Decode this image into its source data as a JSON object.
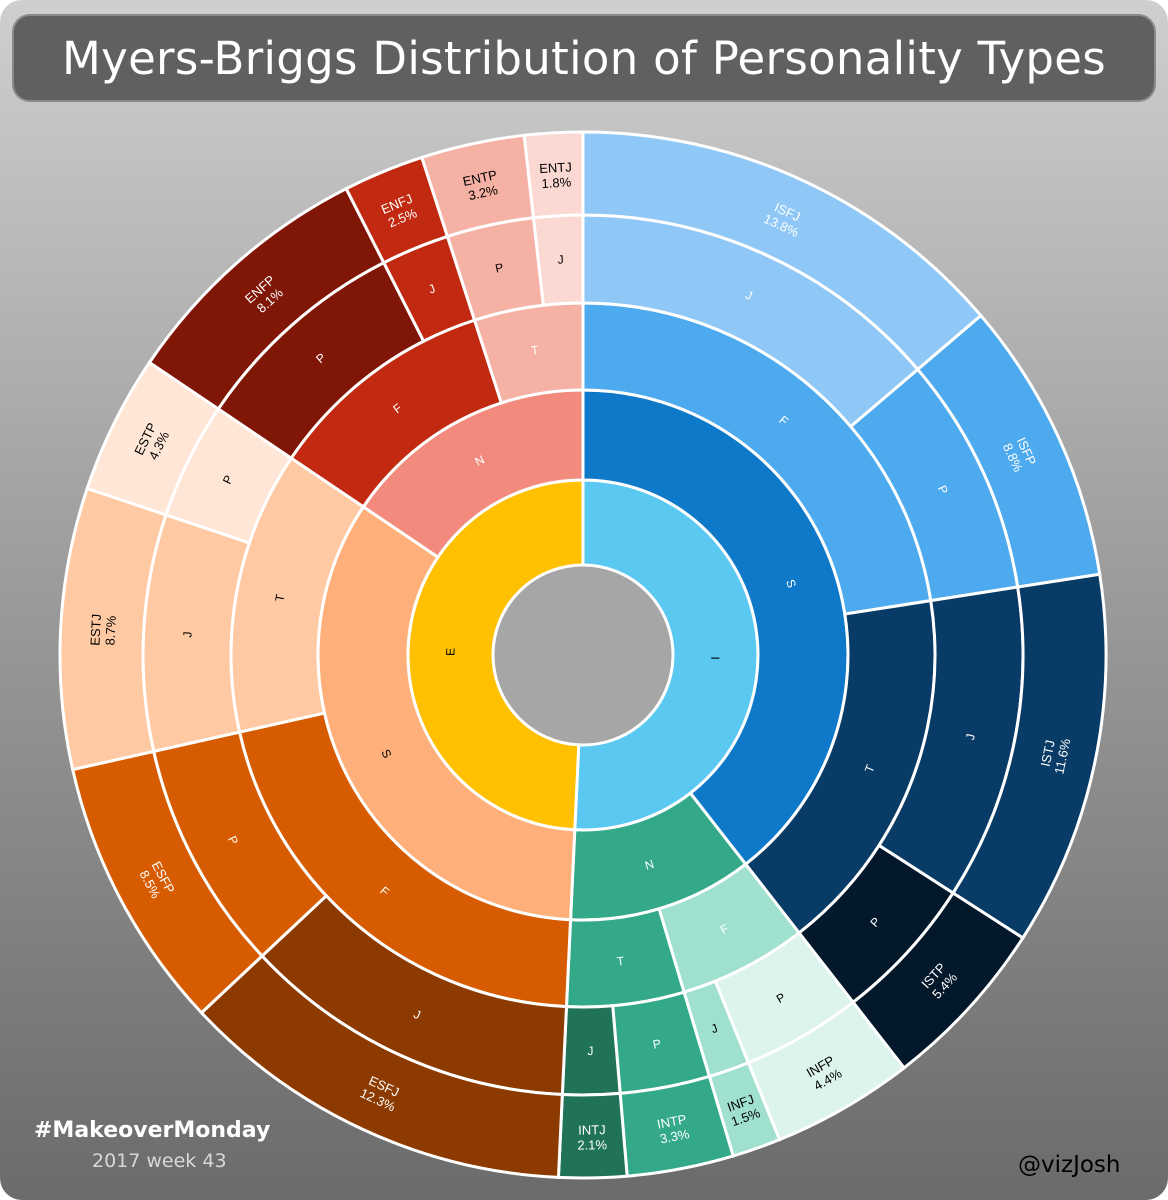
{
  "title": "Myers-Briggs Distribution of Personality Types",
  "footer": {
    "hashtag": "#MakeoverMonday",
    "week": "2017 week 43",
    "author": "@vizJosh"
  },
  "colors": {
    "background_top": "#cfcfcf",
    "background_bottom": "#6b6b6b",
    "hole": "#a6a6a6",
    "separator": "#ffffff"
  },
  "chart_data": {
    "type": "sunburst",
    "levels": [
      "E/I",
      "S/N",
      "T/F",
      "J/P",
      "type"
    ],
    "types": [
      {
        "code": "ISFJ",
        "label": "13.8%",
        "value": 13.8,
        "path": [
          "I",
          "S",
          "F",
          "J"
        ]
      },
      {
        "code": "ISFP",
        "label": "8.8%",
        "value": 8.8,
        "path": [
          "I",
          "S",
          "F",
          "P"
        ]
      },
      {
        "code": "ISTJ",
        "label": "11.6%",
        "value": 11.6,
        "path": [
          "I",
          "S",
          "T",
          "J"
        ]
      },
      {
        "code": "ISTP",
        "label": "5.4%",
        "value": 5.4,
        "path": [
          "I",
          "S",
          "T",
          "P"
        ]
      },
      {
        "code": "INFP",
        "label": "4.4%",
        "value": 4.4,
        "path": [
          "I",
          "N",
          "F",
          "P"
        ]
      },
      {
        "code": "INFJ",
        "label": "1.5%",
        "value": 1.5,
        "path": [
          "I",
          "N",
          "F",
          "J"
        ]
      },
      {
        "code": "INTP",
        "label": "3.3%",
        "value": 3.3,
        "path": [
          "I",
          "N",
          "T",
          "P"
        ]
      },
      {
        "code": "INTJ",
        "label": "2.1%",
        "value": 2.1,
        "path": [
          "I",
          "N",
          "T",
          "J"
        ]
      },
      {
        "code": "ESFJ",
        "label": "12.3%",
        "value": 12.3,
        "path": [
          "E",
          "S",
          "F",
          "J"
        ]
      },
      {
        "code": "ESFP",
        "label": "8.5%",
        "value": 8.5,
        "path": [
          "E",
          "S",
          "F",
          "P"
        ]
      },
      {
        "code": "ESTJ",
        "label": "8.7%",
        "value": 8.7,
        "path": [
          "E",
          "S",
          "T",
          "J"
        ]
      },
      {
        "code": "ESTP",
        "label": "4.3%",
        "value": 4.3,
        "path": [
          "E",
          "S",
          "T",
          "P"
        ]
      },
      {
        "code": "ENFP",
        "label": "8.1%",
        "value": 8.1,
        "path": [
          "E",
          "N",
          "F",
          "P"
        ]
      },
      {
        "code": "ENFJ",
        "label": "2.5%",
        "value": 2.5,
        "path": [
          "E",
          "N",
          "F",
          "J"
        ]
      },
      {
        "code": "ENTP",
        "label": "3.2%",
        "value": 3.2,
        "path": [
          "E",
          "N",
          "T",
          "P"
        ]
      },
      {
        "code": "ENTJ",
        "label": "1.8%",
        "value": 1.8,
        "path": [
          "E",
          "N",
          "T",
          "J"
        ]
      }
    ],
    "node_colors": {
      "I": "#5bc8f2",
      "E": "#ffc000",
      "I/S": "#0e79c9",
      "I/N": "#33a98a",
      "E/S": "#ffb07a",
      "E/N": "#f28b7d",
      "I/S/F": "#4eaaee",
      "I/S/T": "#083c66",
      "I/N/F": "#a0e0cf",
      "I/N/T": "#33a98a",
      "E/S/F": "#d75b00",
      "E/S/T": "#ffcaa3",
      "E/N/F": "#c12a10",
      "E/N/T": "#f6b1a5",
      "I/S/F/J": "#8fc8f6",
      "I/S/F/P": "#4eaaee",
      "I/S/T/J": "#083c66",
      "I/S/T/P": "#03182a",
      "I/N/F/P": "#ddf4ee",
      "I/N/F/J": "#a0e0cf",
      "I/N/T/P": "#33a98a",
      "I/N/T/J": "#207259",
      "E/S/F/J": "#8d3a00",
      "E/S/F/P": "#d75b00",
      "E/S/T/J": "#ffcaa3",
      "E/S/T/P": "#ffe6d6",
      "E/N/F/P": "#801606",
      "E/N/F/J": "#c12a10",
      "E/N/T/P": "#f6b1a5",
      "E/N/T/J": "#fbd8d2"
    },
    "dark_text_nodes": [
      "I",
      "E",
      "E/S",
      "E/S/T",
      "E/S/T/J",
      "E/S/T/P",
      "E/N/T/P",
      "E/N/T/J",
      "I/N/F/P",
      "I/N/F/J"
    ]
  }
}
